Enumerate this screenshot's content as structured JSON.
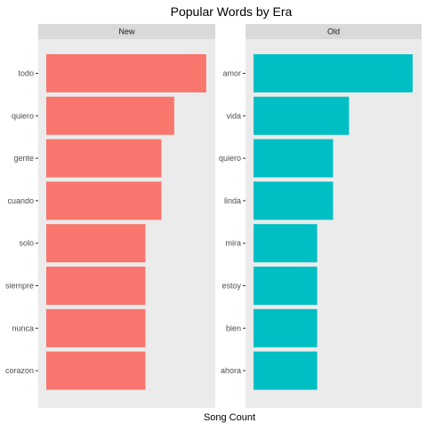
{
  "chart_data": {
    "type": "bar",
    "orientation": "horizontal",
    "title": "Popular Words by Era",
    "xlabel": "Song Count",
    "ylabel": "",
    "xlim": [
      0,
      5.2
    ],
    "x_tick_labels_shown": false,
    "grid": false,
    "panel_background": "#EBEBEB",
    "strip_background": "#D9D9D9",
    "panels": [
      {
        "name": "New",
        "color": "#F8766D",
        "categories": [
          "todo",
          "quiero",
          "gente",
          "cuando",
          "solo",
          "siempre",
          "nunca",
          "corazon"
        ],
        "values": [
          5,
          4,
          3.6,
          3.6,
          3.1,
          3.1,
          3.1,
          3.1
        ]
      },
      {
        "name": "Old",
        "color": "#00BFC4",
        "categories": [
          "amor",
          "vida",
          "quiero",
          "linda",
          "mira",
          "estoy",
          "bien",
          "ahora"
        ],
        "values": [
          5,
          3,
          2.5,
          2.5,
          2,
          2,
          2,
          2
        ]
      }
    ]
  }
}
